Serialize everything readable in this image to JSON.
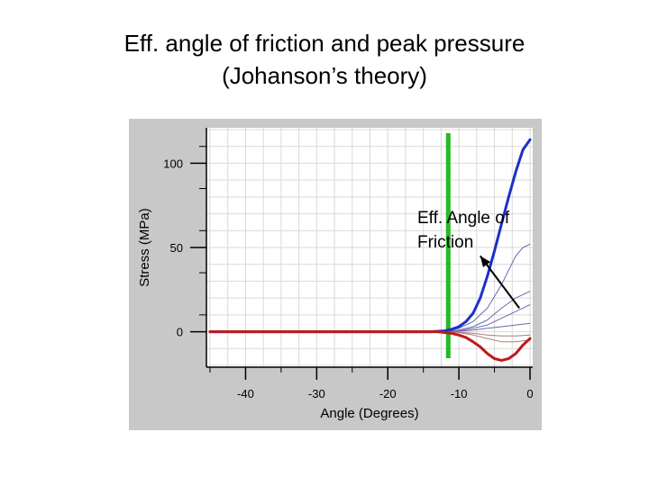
{
  "title": {
    "line1": "Eff. angle of friction and peak pressure",
    "line2": "(Johanson’s theory)"
  },
  "annotation": {
    "line1": "Eff. Angle of",
    "line2": "Friction"
  },
  "colors": {
    "frame_bg": "#c8c8c8",
    "plot_bg": "#ffffff",
    "grid": "#d9d9d9",
    "axis": "#000000",
    "marker_line": "#22bb22",
    "stress_max": "#1e2fc8",
    "stress_min": "#c01818",
    "thin_upper": "#6a6aaa",
    "thin_lower": "#b07a7a"
  },
  "chart_data": {
    "type": "line",
    "xlabel": "Angle (Degrees)",
    "ylabel": "Stress (MPa)",
    "xlim": [
      -45,
      0
    ],
    "ylim": [
      -20,
      120
    ],
    "xticks": [
      -40,
      -30,
      -20,
      -10,
      0
    ],
    "yticks": [
      0,
      50,
      100
    ],
    "grid": true,
    "vertical_marker_x": -11.5,
    "series": [
      {
        "role": "upper-envelope",
        "color": "#1e2fc8",
        "width": 3,
        "x": [
          -45,
          -14,
          -12,
          -11,
          -10,
          -9,
          -8,
          -7,
          -6,
          -5,
          -4,
          -3,
          -2,
          -1,
          0
        ],
        "y": [
          0,
          0,
          0.5,
          1.5,
          3,
          6,
          11,
          20,
          33,
          48,
          64,
          80,
          95,
          108,
          114
        ]
      },
      {
        "role": "lower-envelope",
        "color": "#c01818",
        "width": 3,
        "x": [
          -45,
          -13,
          -12,
          -11,
          -10,
          -9,
          -8,
          -7,
          -6,
          -5,
          -4,
          -3,
          -2,
          -1,
          0
        ],
        "y": [
          0,
          0,
          -0.5,
          -1,
          -2,
          -3.5,
          -6,
          -9,
          -13,
          -16,
          -17,
          -16,
          -13,
          -8,
          -4
        ]
      },
      {
        "role": "intermediate",
        "color": "#6a6aaa",
        "width": 1,
        "x": [
          -12,
          -10,
          -8,
          -6,
          -4,
          -2,
          -1,
          0
        ],
        "y": [
          0,
          2,
          6,
          14,
          28,
          45,
          50,
          52
        ]
      },
      {
        "role": "intermediate",
        "color": "#6a6aaa",
        "width": 1,
        "x": [
          -12,
          -10,
          -8,
          -6,
          -4,
          -2,
          0
        ],
        "y": [
          0,
          1,
          3,
          7,
          14,
          20,
          24
        ]
      },
      {
        "role": "intermediate",
        "color": "#6a6aaa",
        "width": 1,
        "x": [
          -12,
          -10,
          -8,
          -6,
          -4,
          -2,
          0
        ],
        "y": [
          0,
          0.5,
          2,
          4,
          8,
          12,
          16
        ]
      },
      {
        "role": "intermediate",
        "color": "#6a6aaa",
        "width": 1,
        "x": [
          -12,
          -10,
          -8,
          -6,
          -4,
          -2,
          0
        ],
        "y": [
          0,
          0.3,
          1,
          2,
          3,
          4,
          5
        ]
      },
      {
        "role": "intermediate",
        "color": "#b07a7a",
        "width": 1,
        "x": [
          -12,
          -10,
          -8,
          -6,
          -4,
          -2,
          0
        ],
        "y": [
          0,
          -0.3,
          -1,
          -2,
          -2.5,
          -2.5,
          -2
        ]
      },
      {
        "role": "intermediate",
        "color": "#b07a7a",
        "width": 1,
        "x": [
          -12,
          -10,
          -8,
          -6,
          -4,
          -2,
          0
        ],
        "y": [
          0,
          -0.5,
          -2,
          -4,
          -6,
          -6,
          -5
        ]
      }
    ]
  }
}
